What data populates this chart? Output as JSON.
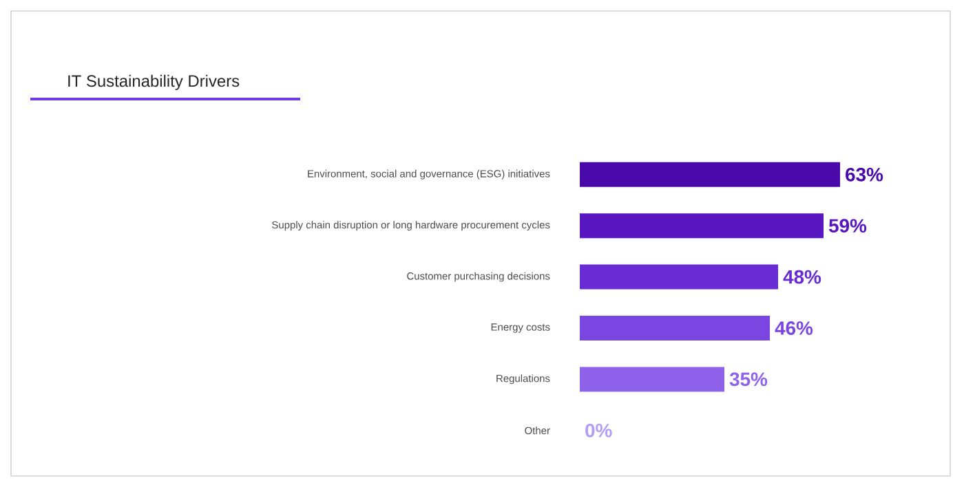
{
  "chart_data": {
    "type": "bar",
    "orientation": "horizontal",
    "title": "IT Sustainability Drivers",
    "categories": [
      "Environment, social and governance (ESG) initiatives",
      "Supply chain disruption or long hardware procurement cycles",
      "Customer purchasing decisions",
      "Energy costs",
      "Regulations",
      "Other"
    ],
    "values": [
      63,
      59,
      48,
      46,
      35,
      0
    ],
    "value_labels": [
      "63%",
      "59%",
      "48%",
      "46%",
      "35%",
      "0%"
    ],
    "colors": [
      "#4a0aaa",
      "#5816c0",
      "#682bd4",
      "#7a45e0",
      "#8e62ea",
      "#b39cf4"
    ]
  }
}
